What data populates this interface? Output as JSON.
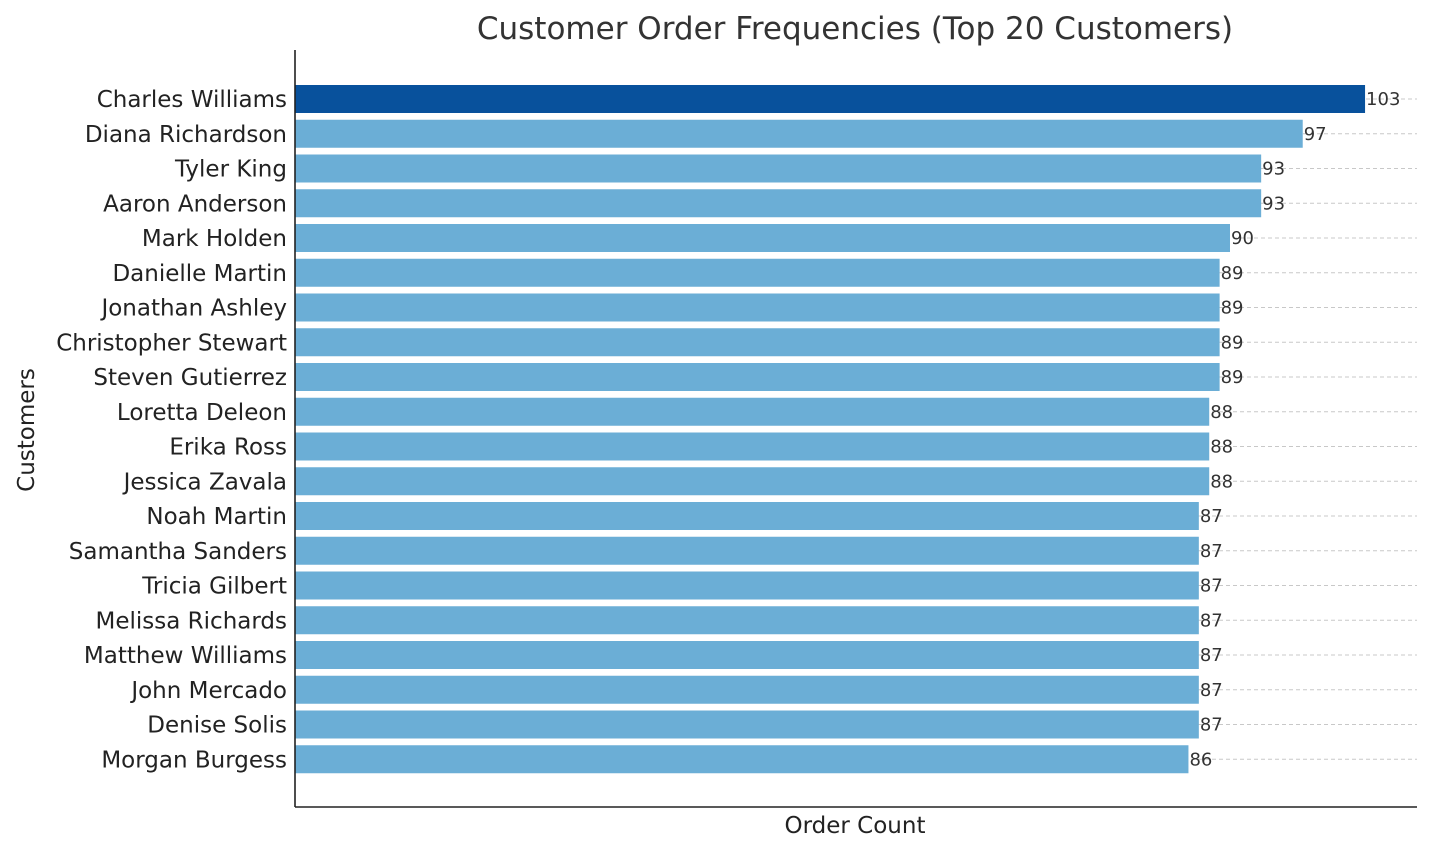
{
  "chart_data": {
    "type": "bar",
    "orientation": "horizontal",
    "title": "Customer Order Frequencies (Top 20 Customers)",
    "xlabel": "Order Count",
    "ylabel": "Customers",
    "categories": [
      "Charles Williams",
      "Diana Richardson",
      "Tyler King",
      "Aaron Anderson",
      "Mark Holden",
      "Danielle Martin",
      "Jonathan Ashley",
      "Christopher Stewart",
      "Steven Gutierrez",
      "Loretta Deleon",
      "Erika Ross",
      "Jessica Zavala",
      "Noah Martin",
      "Samantha Sanders",
      "Tricia Gilbert",
      "Melissa Richards",
      "Matthew Williams",
      "John Mercado",
      "Denise Solis",
      "Morgan Burgess"
    ],
    "values": [
      103,
      97,
      93,
      93,
      90,
      89,
      89,
      89,
      89,
      88,
      88,
      88,
      87,
      87,
      87,
      87,
      87,
      87,
      87,
      86
    ],
    "xlim": [
      0,
      108
    ],
    "grid": true,
    "highlight_index": 0,
    "colors": {
      "bar": "#6baed6",
      "highlight": "#08519c"
    }
  }
}
